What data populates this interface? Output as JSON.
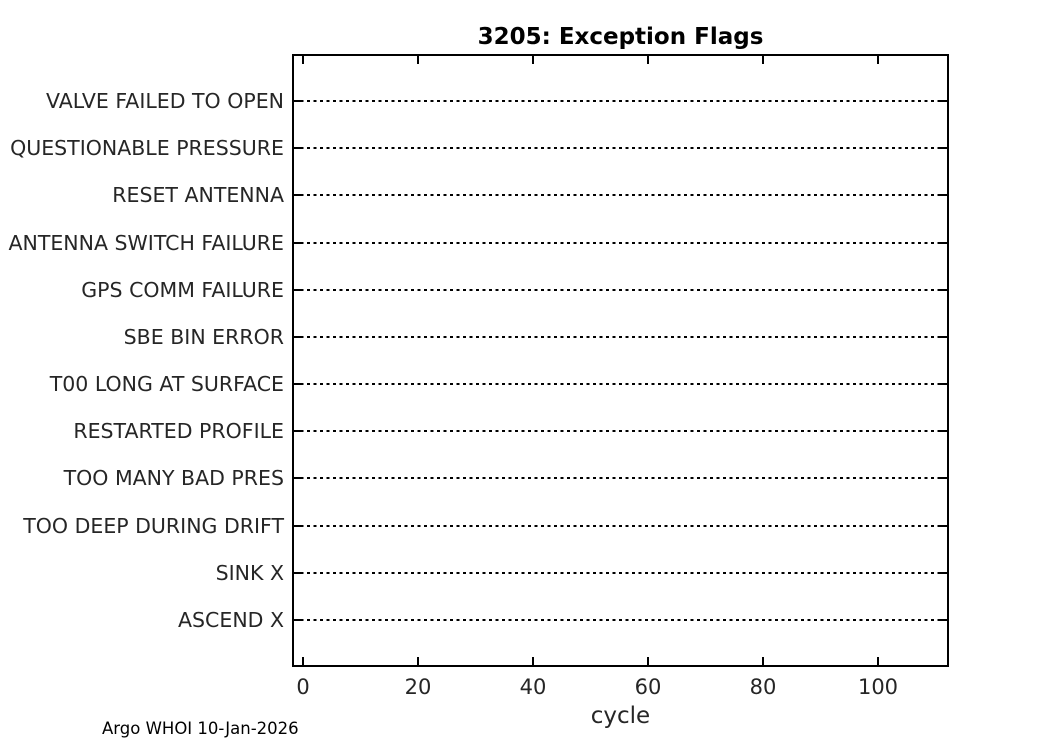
{
  "chart_data": {
    "type": "scatter",
    "title": "3205: Exception Flags",
    "xlabel": "cycle",
    "ylabel": "",
    "footer": "Argo WHOI 10-Jan-2026",
    "categories_top_to_bottom": [
      "VALVE FAILED TO OPEN",
      "QUESTIONABLE PRESSURE",
      "RESET ANTENNA",
      "ANTENNA SWITCH FAILURE",
      "GPS COMM FAILURE",
      "SBE BIN ERROR",
      "T00 LONG AT SURFACE",
      "RESTARTED PROFILE",
      "TOO MANY BAD PRES",
      "TOO DEEP DURING DRIFT",
      "SINK X",
      "ASCEND X"
    ],
    "xticks": [
      0,
      20,
      40,
      60,
      80,
      100
    ],
    "xlim": [
      -2,
      112.3
    ],
    "ylim": [
      0,
      13
    ],
    "points": [],
    "grid": "dotted horizontal line at each category row",
    "legend": "none",
    "box": "on",
    "tick_direction": "in"
  }
}
